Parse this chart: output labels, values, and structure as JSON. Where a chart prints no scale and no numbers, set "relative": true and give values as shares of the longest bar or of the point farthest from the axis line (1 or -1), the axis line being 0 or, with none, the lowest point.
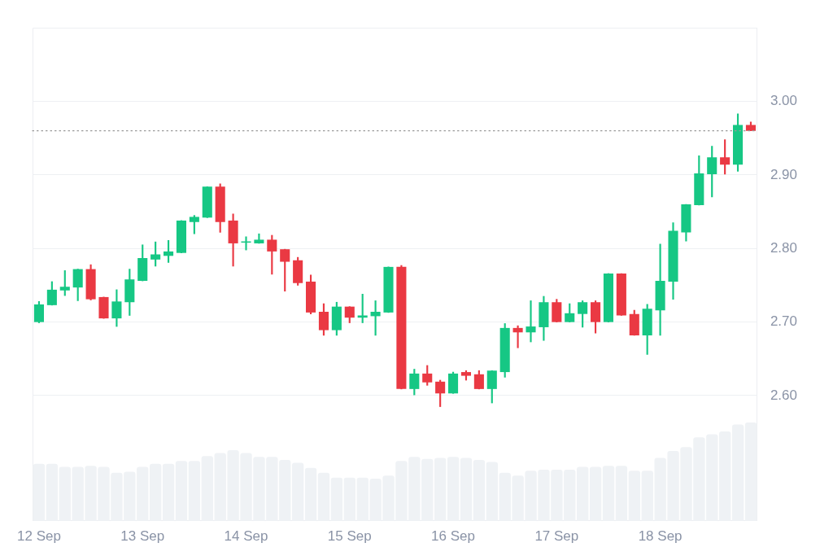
{
  "chart_data": [
    {
      "type": "candlestick",
      "categories": [
        "12 Sep",
        null,
        null,
        null,
        null,
        null,
        null,
        null,
        "13 Sep",
        null,
        null,
        null,
        null,
        null,
        null,
        null,
        "14 Sep",
        null,
        null,
        null,
        null,
        null,
        null,
        null,
        "15 Sep",
        null,
        null,
        null,
        null,
        null,
        null,
        null,
        "16 Sep",
        null,
        null,
        null,
        null,
        null,
        null,
        null,
        "17 Sep",
        null,
        null,
        null,
        null,
        null,
        null,
        null,
        "18 Sep",
        null,
        null,
        null,
        null,
        null,
        null,
        null
      ],
      "ohlc": [
        [
          2.7,
          2.728,
          2.699,
          2.724
        ],
        [
          2.723,
          2.755,
          2.723,
          2.744
        ],
        [
          2.743,
          2.77,
          2.736,
          2.748
        ],
        [
          2.747,
          2.772,
          2.729,
          2.772
        ],
        [
          2.772,
          2.778,
          2.73,
          2.731
        ],
        [
          2.734,
          2.734,
          2.705,
          2.705
        ],
        [
          2.705,
          2.744,
          2.694,
          2.728
        ],
        [
          2.727,
          2.772,
          2.709,
          2.758
        ],
        [
          2.756,
          2.805,
          2.756,
          2.787
        ],
        [
          2.785,
          2.809,
          2.776,
          2.792
        ],
        [
          2.79,
          2.811,
          2.781,
          2.796
        ],
        [
          2.794,
          2.838,
          2.794,
          2.838
        ],
        [
          2.836,
          2.845,
          2.82,
          2.843
        ],
        [
          2.842,
          2.884,
          2.842,
          2.884
        ],
        [
          2.884,
          2.888,
          2.822,
          2.836
        ],
        [
          2.838,
          2.847,
          2.776,
          2.807
        ],
        [
          2.808,
          2.816,
          2.798,
          2.809
        ],
        [
          2.807,
          2.82,
          2.807,
          2.812
        ],
        [
          2.812,
          2.818,
          2.765,
          2.796
        ],
        [
          2.799,
          2.799,
          2.742,
          2.782
        ],
        [
          2.784,
          2.788,
          2.75,
          2.753
        ],
        [
          2.755,
          2.764,
          2.711,
          2.713
        ],
        [
          2.714,
          2.725,
          2.682,
          2.689
        ],
        [
          2.689,
          2.727,
          2.682,
          2.721
        ],
        [
          2.721,
          2.721,
          2.699,
          2.706
        ],
        [
          2.706,
          2.738,
          2.699,
          2.709
        ],
        [
          2.708,
          2.729,
          2.682,
          2.714
        ],
        [
          2.713,
          2.775,
          2.713,
          2.775
        ],
        [
          2.775,
          2.777,
          2.609,
          2.609
        ],
        [
          2.609,
          2.636,
          2.601,
          2.63
        ],
        [
          2.63,
          2.641,
          2.614,
          2.618
        ],
        [
          2.619,
          2.621,
          2.585,
          2.603
        ],
        [
          2.603,
          2.632,
          2.603,
          2.63
        ],
        [
          2.632,
          2.634,
          2.621,
          2.627
        ],
        [
          2.629,
          2.634,
          2.609,
          2.609
        ],
        [
          2.609,
          2.634,
          2.59,
          2.634
        ],
        [
          2.632,
          2.698,
          2.625,
          2.692
        ],
        [
          2.692,
          2.695,
          2.665,
          2.686
        ],
        [
          2.686,
          2.729,
          2.673,
          2.694
        ],
        [
          2.693,
          2.735,
          2.675,
          2.727
        ],
        [
          2.727,
          2.731,
          2.7,
          2.7
        ],
        [
          2.7,
          2.725,
          2.7,
          2.712
        ],
        [
          2.711,
          2.729,
          2.693,
          2.727
        ],
        [
          2.727,
          2.729,
          2.685,
          2.7
        ],
        [
          2.7,
          2.766,
          2.7,
          2.766
        ],
        [
          2.766,
          2.766,
          2.709,
          2.709
        ],
        [
          2.711,
          2.716,
          2.682,
          2.682
        ],
        [
          2.682,
          2.724,
          2.656,
          2.718
        ],
        [
          2.716,
          2.806,
          2.682,
          2.756
        ],
        [
          2.755,
          2.835,
          2.731,
          2.824
        ],
        [
          2.822,
          2.86,
          2.81,
          2.86
        ],
        [
          2.859,
          2.926,
          2.859,
          2.902
        ],
        [
          2.901,
          2.939,
          2.87,
          2.924
        ],
        [
          2.924,
          2.948,
          2.901,
          2.914
        ],
        [
          2.914,
          2.983,
          2.905,
          2.968
        ],
        [
          2.968,
          2.972,
          2.96,
          2.96
        ]
      ],
      "colors": [
        "#16c784",
        "#16c784",
        "#16c784",
        "#16c784",
        "#ea3943",
        "#ea3943",
        "#16c784",
        "#16c784",
        "#16c784",
        "#16c784",
        "#16c784",
        "#16c784",
        "#16c784",
        "#16c784",
        "#ea3943",
        "#ea3943",
        "#16c784",
        "#16c784",
        "#ea3943",
        "#ea3943",
        "#ea3943",
        "#ea3943",
        "#ea3943",
        "#16c784",
        "#ea3943",
        "#16c784",
        "#16c784",
        "#16c784",
        "#ea3943",
        "#16c784",
        "#ea3943",
        "#ea3943",
        "#16c784",
        "#ea3943",
        "#ea3943",
        "#16c784",
        "#16c784",
        "#ea3943",
        "#16c784",
        "#16c784",
        "#ea3943",
        "#16c784",
        "#16c784",
        "#ea3943",
        "#16c784",
        "#ea3943",
        "#ea3943",
        "#16c784",
        "#16c784",
        "#16c784",
        "#16c784",
        "#16c784",
        "#16c784",
        "#ea3943",
        "#16c784",
        "#ea3943"
      ],
      "ylim": [
        2.43,
        3.1
      ],
      "yticks": [
        {
          "value": 2.6,
          "label": "2.60"
        },
        {
          "value": 2.7,
          "label": "2.70"
        },
        {
          "value": 2.8,
          "label": "2.80"
        },
        {
          "value": 2.9,
          "label": "2.90"
        },
        {
          "value": 3.0,
          "label": "3.00"
        }
      ],
      "grid": "y",
      "ref_lines": [
        {
          "axis": "y",
          "value": 2.96,
          "color": "#999999",
          "line_style": "dotted"
        }
      ]
    },
    {
      "type": "bar",
      "relative": true,
      "color": "#eff2f5",
      "categories": [
        null,
        null,
        null,
        null,
        null,
        null,
        null,
        null,
        null,
        null,
        null,
        null,
        null,
        null,
        null,
        null,
        null,
        null,
        null,
        null,
        null,
        null,
        null,
        null,
        null,
        null,
        null,
        null,
        null,
        null,
        null,
        null,
        null,
        null,
        null,
        null,
        null,
        null,
        null,
        null,
        null,
        null,
        null,
        null,
        null,
        null,
        null,
        null,
        null,
        null,
        null,
        null,
        null,
        null,
        null,
        null
      ],
      "values": [
        0.58,
        0.58,
        0.55,
        0.55,
        0.56,
        0.55,
        0.49,
        0.5,
        0.55,
        0.58,
        0.58,
        0.61,
        0.61,
        0.66,
        0.69,
        0.72,
        0.69,
        0.65,
        0.65,
        0.62,
        0.59,
        0.54,
        0.49,
        0.44,
        0.44,
        0.44,
        0.43,
        0.46,
        0.61,
        0.65,
        0.63,
        0.64,
        0.65,
        0.64,
        0.62,
        0.6,
        0.49,
        0.46,
        0.51,
        0.52,
        0.52,
        0.52,
        0.55,
        0.55,
        0.56,
        0.56,
        0.51,
        0.51,
        0.64,
        0.71,
        0.75,
        0.85,
        0.88,
        0.91,
        0.98,
        1
      ]
    }
  ]
}
